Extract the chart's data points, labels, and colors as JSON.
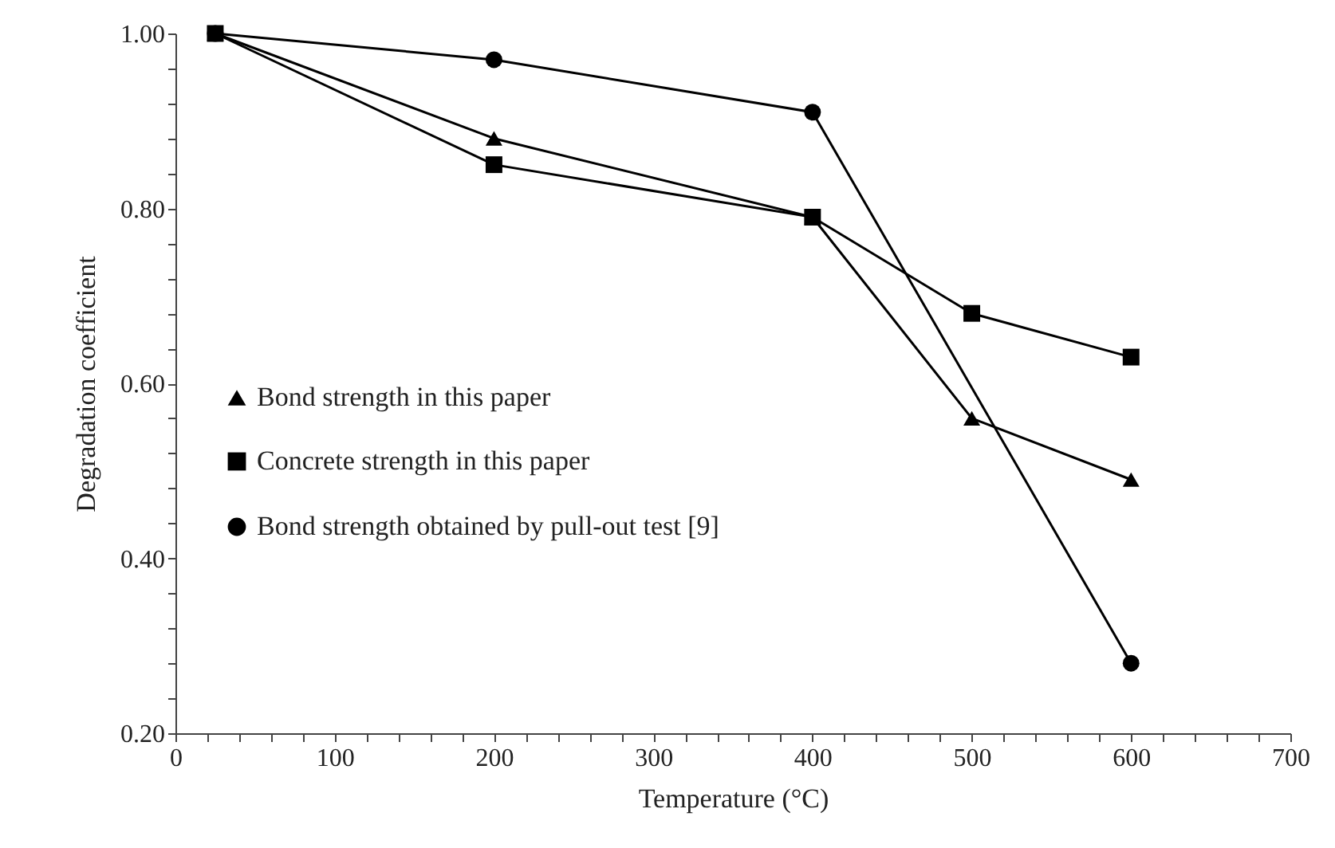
{
  "chart_data": {
    "type": "line",
    "xlabel": "Temperature (°C)",
    "ylabel": "Degradation coefficient",
    "x": [
      25,
      200,
      400,
      500,
      600
    ],
    "series": [
      {
        "name": "Bond strength in this paper",
        "color": "#000000",
        "marker": "triangle",
        "values": [
          1.0,
          0.88,
          0.79,
          0.56,
          0.49
        ]
      },
      {
        "name": "Concrete strength in this paper",
        "color": "#000000",
        "marker": "square",
        "values": [
          1.0,
          0.85,
          0.79,
          0.68,
          0.63
        ]
      },
      {
        "name": "Bond strength obtained by pull-out test  [9]",
        "color": "#000000",
        "marker": "circle",
        "x": [
          25,
          200,
          400,
          600
        ],
        "values": [
          1.0,
          0.97,
          0.91,
          0.28
        ]
      }
    ],
    "xlim": [
      0,
      700
    ],
    "xticks": [
      0,
      {
        "value": 20,
        "label": null
      },
      {
        "value": 40,
        "label": null
      },
      {
        "value": 60,
        "label": null
      },
      {
        "value": 80,
        "label": null
      },
      100,
      {
        "value": 120,
        "label": null
      },
      {
        "value": 140,
        "label": null
      },
      {
        "value": 160,
        "label": null
      },
      {
        "value": 180,
        "label": null
      },
      200,
      {
        "value": 220,
        "label": null
      },
      {
        "value": 240,
        "label": null
      },
      {
        "value": 260,
        "label": null
      },
      {
        "value": 280,
        "label": null
      },
      300,
      {
        "value": 320,
        "label": null
      },
      {
        "value": 340,
        "label": null
      },
      {
        "value": 360,
        "label": null
      },
      {
        "value": 380,
        "label": null
      },
      400,
      {
        "value": 420,
        "label": null
      },
      {
        "value": 440,
        "label": null
      },
      {
        "value": 460,
        "label": null
      },
      {
        "value": 480,
        "label": null
      },
      500,
      {
        "value": 520,
        "label": null
      },
      {
        "value": 540,
        "label": null
      },
      {
        "value": 560,
        "label": null
      },
      {
        "value": 580,
        "label": null
      },
      600,
      {
        "value": 620,
        "label": null
      },
      {
        "value": 640,
        "label": null
      },
      {
        "value": 660,
        "label": null
      },
      {
        "value": 680,
        "label": null
      },
      700
    ],
    "ylim": [
      0.2,
      1.0
    ],
    "yticks": [
      {
        "value": 0.2,
        "label": "0.20"
      },
      {
        "value": 0.24,
        "label": null
      },
      {
        "value": 0.28,
        "label": null
      },
      {
        "value": 0.32,
        "label": null
      },
      {
        "value": 0.36,
        "label": null
      },
      {
        "value": 0.4,
        "label": "0.40"
      },
      {
        "value": 0.44,
        "label": null
      },
      {
        "value": 0.48,
        "label": null
      },
      {
        "value": 0.52,
        "label": null
      },
      {
        "value": 0.56,
        "label": null
      },
      {
        "value": 0.6,
        "label": "0.60"
      },
      {
        "value": 0.64,
        "label": null
      },
      {
        "value": 0.68,
        "label": null
      },
      {
        "value": 0.72,
        "label": null
      },
      {
        "value": 0.76,
        "label": null
      },
      {
        "value": 0.8,
        "label": "0.80"
      },
      {
        "value": 0.84,
        "label": null
      },
      {
        "value": 0.88,
        "label": null
      },
      {
        "value": 0.92,
        "label": null
      },
      {
        "value": 0.96,
        "label": null
      },
      {
        "value": 1.0,
        "label": "1.00"
      }
    ],
    "grid": false,
    "legend": "left",
    "line_style": "solid"
  }
}
